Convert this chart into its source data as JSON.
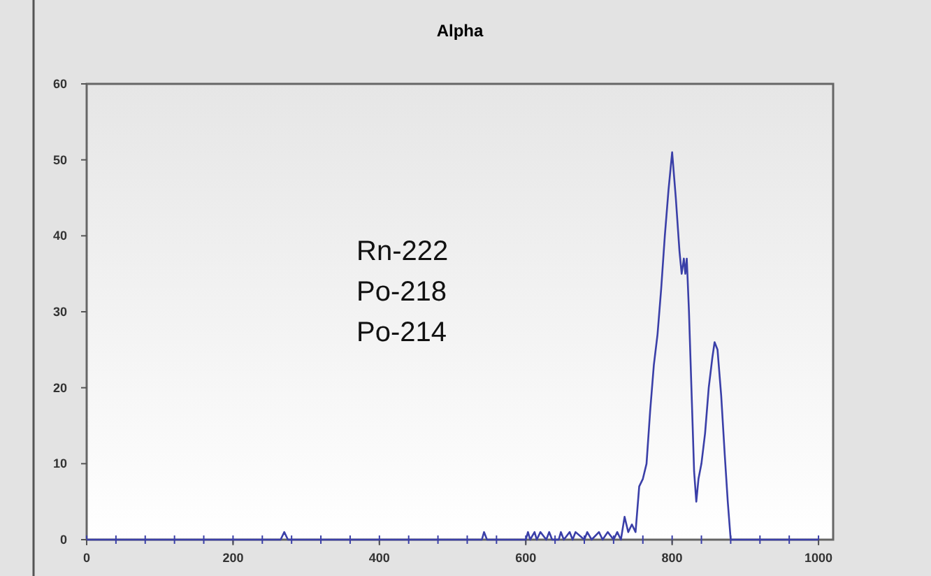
{
  "chart_data": {
    "type": "line",
    "title": "Alpha",
    "annotations": [
      "Rn-222\nPo-218\nPo-214"
    ],
    "x": [
      0,
      265,
      270,
      275,
      540,
      543,
      547,
      600,
      603,
      606,
      612,
      615,
      620,
      628,
      632,
      636,
      645,
      648,
      652,
      660,
      664,
      668,
      680,
      684,
      690,
      700,
      705,
      712,
      720,
      725,
      730,
      735,
      740,
      745,
      750,
      755,
      760,
      765,
      770,
      775,
      780,
      785,
      790,
      795,
      800,
      805,
      810,
      813,
      816,
      818,
      820,
      823,
      827,
      830,
      833,
      836,
      840,
      845,
      850,
      855,
      858,
      862,
      867,
      872,
      876,
      880,
      1000
    ],
    "series": [
      {
        "color": "#3a3fa8",
        "values": [
          0,
          0,
          1,
          0,
          0,
          1,
          0,
          0,
          1,
          0,
          1,
          0,
          1,
          0,
          1,
          0,
          0,
          1,
          0,
          1,
          0,
          1,
          0,
          1,
          0,
          1,
          0,
          1,
          0,
          1,
          0,
          3,
          1,
          2,
          1,
          7,
          8,
          10,
          17,
          23,
          27,
          33,
          40,
          46,
          51,
          45,
          38,
          35,
          37,
          35,
          37,
          30,
          18,
          9,
          5,
          8,
          10,
          14,
          20,
          24,
          26,
          25,
          19,
          11,
          5,
          0,
          0
        ]
      }
    ],
    "xlim": [
      0,
      1020
    ],
    "ylim": [
      0,
      60
    ],
    "xticks": [
      0,
      200,
      400,
      600,
      800,
      1000
    ],
    "yticks": [
      0,
      10,
      20,
      30,
      40,
      50,
      60
    ],
    "grid": false
  }
}
